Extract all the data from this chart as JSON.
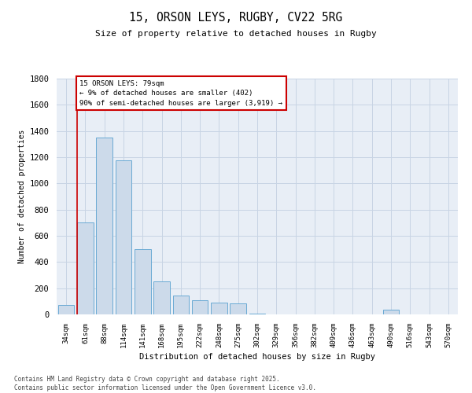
{
  "title_line1": "15, ORSON LEYS, RUGBY, CV22 5RG",
  "title_line2": "Size of property relative to detached houses in Rugby",
  "xlabel": "Distribution of detached houses by size in Rugby",
  "ylabel": "Number of detached properties",
  "bar_labels": [
    "34sqm",
    "61sqm",
    "88sqm",
    "114sqm",
    "141sqm",
    "168sqm",
    "195sqm",
    "222sqm",
    "248sqm",
    "275sqm",
    "302sqm",
    "329sqm",
    "356sqm",
    "382sqm",
    "409sqm",
    "436sqm",
    "463sqm",
    "490sqm",
    "516sqm",
    "543sqm",
    "570sqm"
  ],
  "bar_values": [
    75,
    700,
    1350,
    1175,
    500,
    255,
    145,
    110,
    90,
    85,
    5,
    0,
    0,
    0,
    0,
    0,
    0,
    35,
    0,
    0,
    0
  ],
  "bar_color": "#ccdaea",
  "bar_edge_color": "#6aaad4",
  "annotation_text": "15 ORSON LEYS: 79sqm\n← 9% of detached houses are smaller (402)\n90% of semi-detached houses are larger (3,919) →",
  "annotation_box_color": "#ffffff",
  "annotation_box_edge_color": "#cc0000",
  "ylim": [
    0,
    1800
  ],
  "yticks": [
    0,
    200,
    400,
    600,
    800,
    1000,
    1200,
    1400,
    1600,
    1800
  ],
  "grid_color": "#c8d4e4",
  "background_color": "#e8eef6",
  "footer_line1": "Contains HM Land Registry data © Crown copyright and database right 2025.",
  "footer_line2": "Contains public sector information licensed under the Open Government Licence v3.0."
}
